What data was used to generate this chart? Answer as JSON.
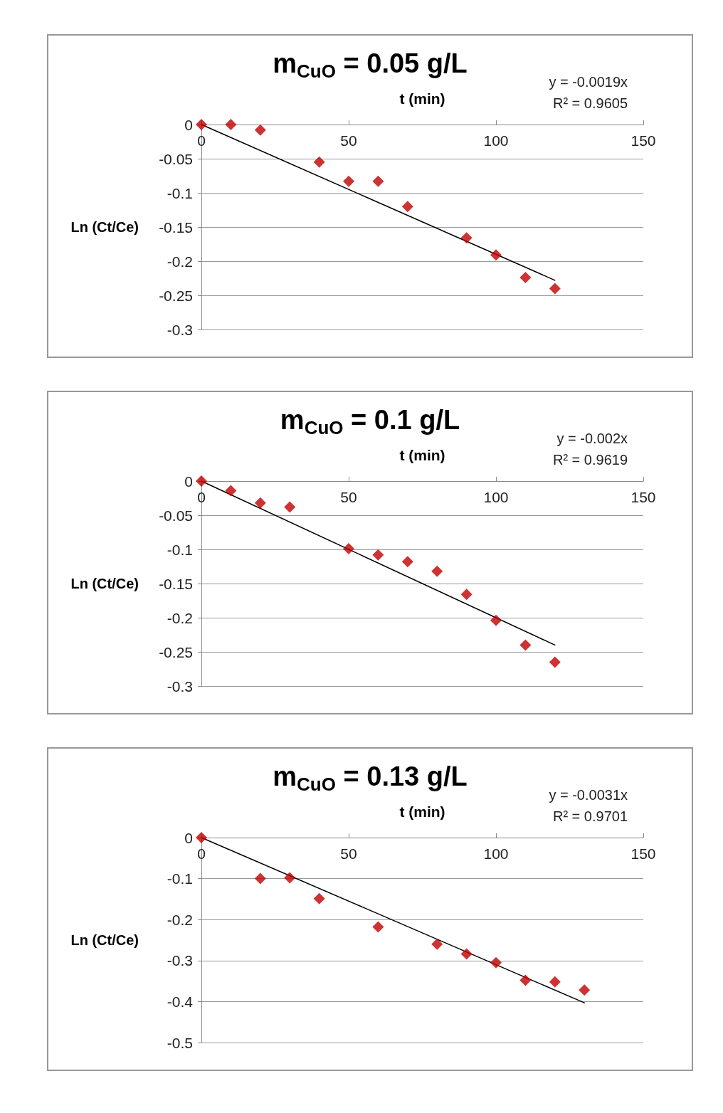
{
  "chart_data": [
    {
      "type": "scatter",
      "title": "m$_{CuO}$ = 0.05 g/L",
      "xlabel": "t (min)",
      "ylabel": "Ln (Ct/Ce)",
      "annotations": [
        "y = -0.0019x",
        "R² = 0.9605"
      ],
      "xlim": [
        0,
        150
      ],
      "xticks": [
        0,
        50,
        100,
        150
      ],
      "ylim": [
        -0.3,
        0
      ],
      "yticks": [
        -0.3,
        -0.25,
        -0.2,
        -0.15,
        -0.1,
        -0.05,
        0
      ],
      "grid": "y",
      "marker": "diamond",
      "series": [
        {
          "color": "#c00000",
          "x": [
            0,
            10,
            20,
            40,
            50,
            60,
            70,
            90,
            100,
            110,
            120
          ],
          "values": [
            0,
            0,
            -0.008,
            -0.055,
            -0.083,
            -0.083,
            -0.12,
            -0.166,
            -0.191,
            -0.224,
            -0.24
          ]
        },
        {
          "type": "line",
          "color": "#000000",
          "marker": "none",
          "x": [
            0,
            120
          ],
          "values": [
            0,
            -0.228
          ]
        }
      ]
    },
    {
      "type": "scatter",
      "title": "m$_{CuO}$ = 0.1 g/L",
      "xlabel": "t (min)",
      "ylabel": "Ln (Ct/Ce)",
      "annotations": [
        "y = -0.002x",
        "R² = 0.9619"
      ],
      "xlim": [
        0,
        150
      ],
      "xticks": [
        0,
        50,
        100,
        150
      ],
      "ylim": [
        -0.3,
        0
      ],
      "yticks": [
        -0.3,
        -0.25,
        -0.2,
        -0.15,
        -0.1,
        -0.05,
        0
      ],
      "grid": "y",
      "marker": "diamond",
      "series": [
        {
          "color": "#c00000",
          "x": [
            0,
            10,
            20,
            30,
            50,
            60,
            70,
            80,
            90,
            100,
            110,
            120
          ],
          "values": [
            0,
            -0.014,
            -0.032,
            -0.038,
            -0.099,
            -0.108,
            -0.118,
            -0.132,
            -0.166,
            -0.204,
            -0.24,
            -0.265
          ]
        },
        {
          "type": "line",
          "color": "#000000",
          "marker": "none",
          "x": [
            0,
            120
          ],
          "values": [
            0,
            -0.24
          ]
        }
      ]
    },
    {
      "type": "scatter",
      "title": "m$_{CuO}$ = 0.13 g/L",
      "xlabel": "t (min)",
      "ylabel": "Ln (Ct/Ce)",
      "annotations": [
        "y = -0.0031x",
        "R² = 0.9701"
      ],
      "xlim": [
        0,
        150
      ],
      "xticks": [
        0,
        50,
        100,
        150
      ],
      "ylim": [
        -0.5,
        0
      ],
      "yticks": [
        -0.5,
        -0.4,
        -0.3,
        -0.2,
        -0.1,
        0
      ],
      "grid": "y",
      "marker": "diamond",
      "series": [
        {
          "color": "#c00000",
          "x": [
            0,
            20,
            30,
            40,
            60,
            80,
            90,
            100,
            110,
            120,
            130
          ],
          "values": [
            0,
            -0.1,
            -0.098,
            -0.149,
            -0.218,
            -0.26,
            -0.284,
            -0.305,
            -0.348,
            -0.352,
            -0.372
          ]
        },
        {
          "type": "line",
          "color": "#000000",
          "marker": "none",
          "x": [
            0,
            130
          ],
          "values": [
            0,
            -0.403
          ]
        }
      ]
    }
  ]
}
